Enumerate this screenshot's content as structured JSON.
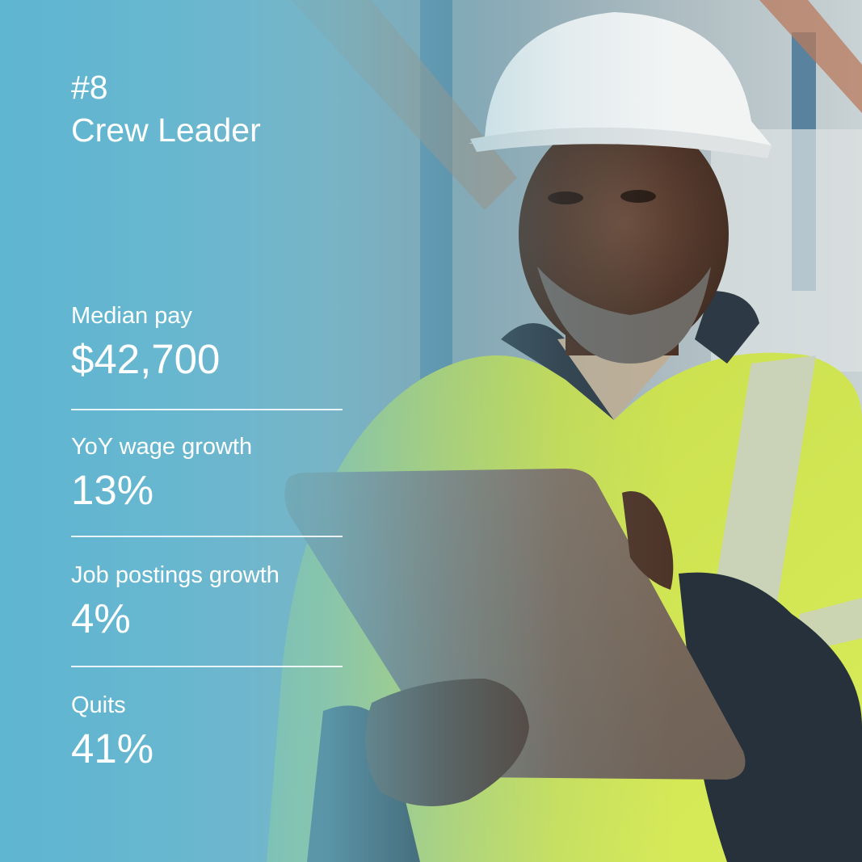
{
  "rank": "#8",
  "job_title": "Crew Leader",
  "stats": [
    {
      "label": "Median pay",
      "value": "$42,700"
    },
    {
      "label": "YoY wage growth",
      "value": "13%"
    },
    {
      "label": "Job postings growth",
      "value": "4%"
    },
    {
      "label": "Quits",
      "value": "41%"
    }
  ],
  "colors": {
    "overlay": "#5cb6d2",
    "text": "#ffffff",
    "vest": "#d4e84a",
    "helmet": "#f2f4f4"
  }
}
